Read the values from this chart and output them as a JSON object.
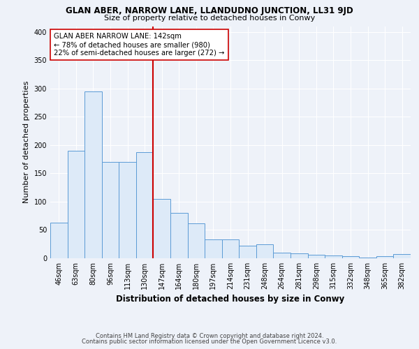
{
  "title1": "GLAN ABER, NARROW LANE, LLANDUDNO JUNCTION, LL31 9JD",
  "title2": "Size of property relative to detached houses in Conwy",
  "xlabel": "Distribution of detached houses by size in Conwy",
  "ylabel": "Number of detached properties",
  "categories": [
    "46sqm",
    "63sqm",
    "80sqm",
    "96sqm",
    "113sqm",
    "130sqm",
    "147sqm",
    "164sqm",
    "180sqm",
    "197sqm",
    "214sqm",
    "231sqm",
    "248sqm",
    "264sqm",
    "281sqm",
    "298sqm",
    "315sqm",
    "332sqm",
    "348sqm",
    "365sqm",
    "382sqm"
  ],
  "values": [
    63,
    190,
    295,
    170,
    170,
    188,
    105,
    80,
    62,
    33,
    33,
    22,
    25,
    10,
    9,
    6,
    5,
    4,
    1,
    4,
    8
  ],
  "bar_color": "#ddeaf8",
  "bar_edge_color": "#5b9bd5",
  "vline_color": "#cc0000",
  "annotation_line1": "GLAN ABER NARROW LANE: 142sqm",
  "annotation_line2": "← 78% of detached houses are smaller (980)",
  "annotation_line3": "22% of semi-detached houses are larger (272) →",
  "annotation_box_facecolor": "#ffffff",
  "annotation_box_edgecolor": "#cc0000",
  "footer1": "Contains HM Land Registry data © Crown copyright and database right 2024.",
  "footer2": "Contains public sector information licensed under the Open Government Licence v3.0.",
  "background_color": "#eef2f9",
  "ylim": [
    0,
    410
  ],
  "yticks": [
    0,
    50,
    100,
    150,
    200,
    250,
    300,
    350,
    400
  ],
  "grid_color": "#ffffff",
  "title1_fontsize": 8.5,
  "title2_fontsize": 8.0,
  "ylabel_fontsize": 8.0,
  "xlabel_fontsize": 8.5,
  "tick_fontsize": 7.0,
  "footer_fontsize": 6.0
}
